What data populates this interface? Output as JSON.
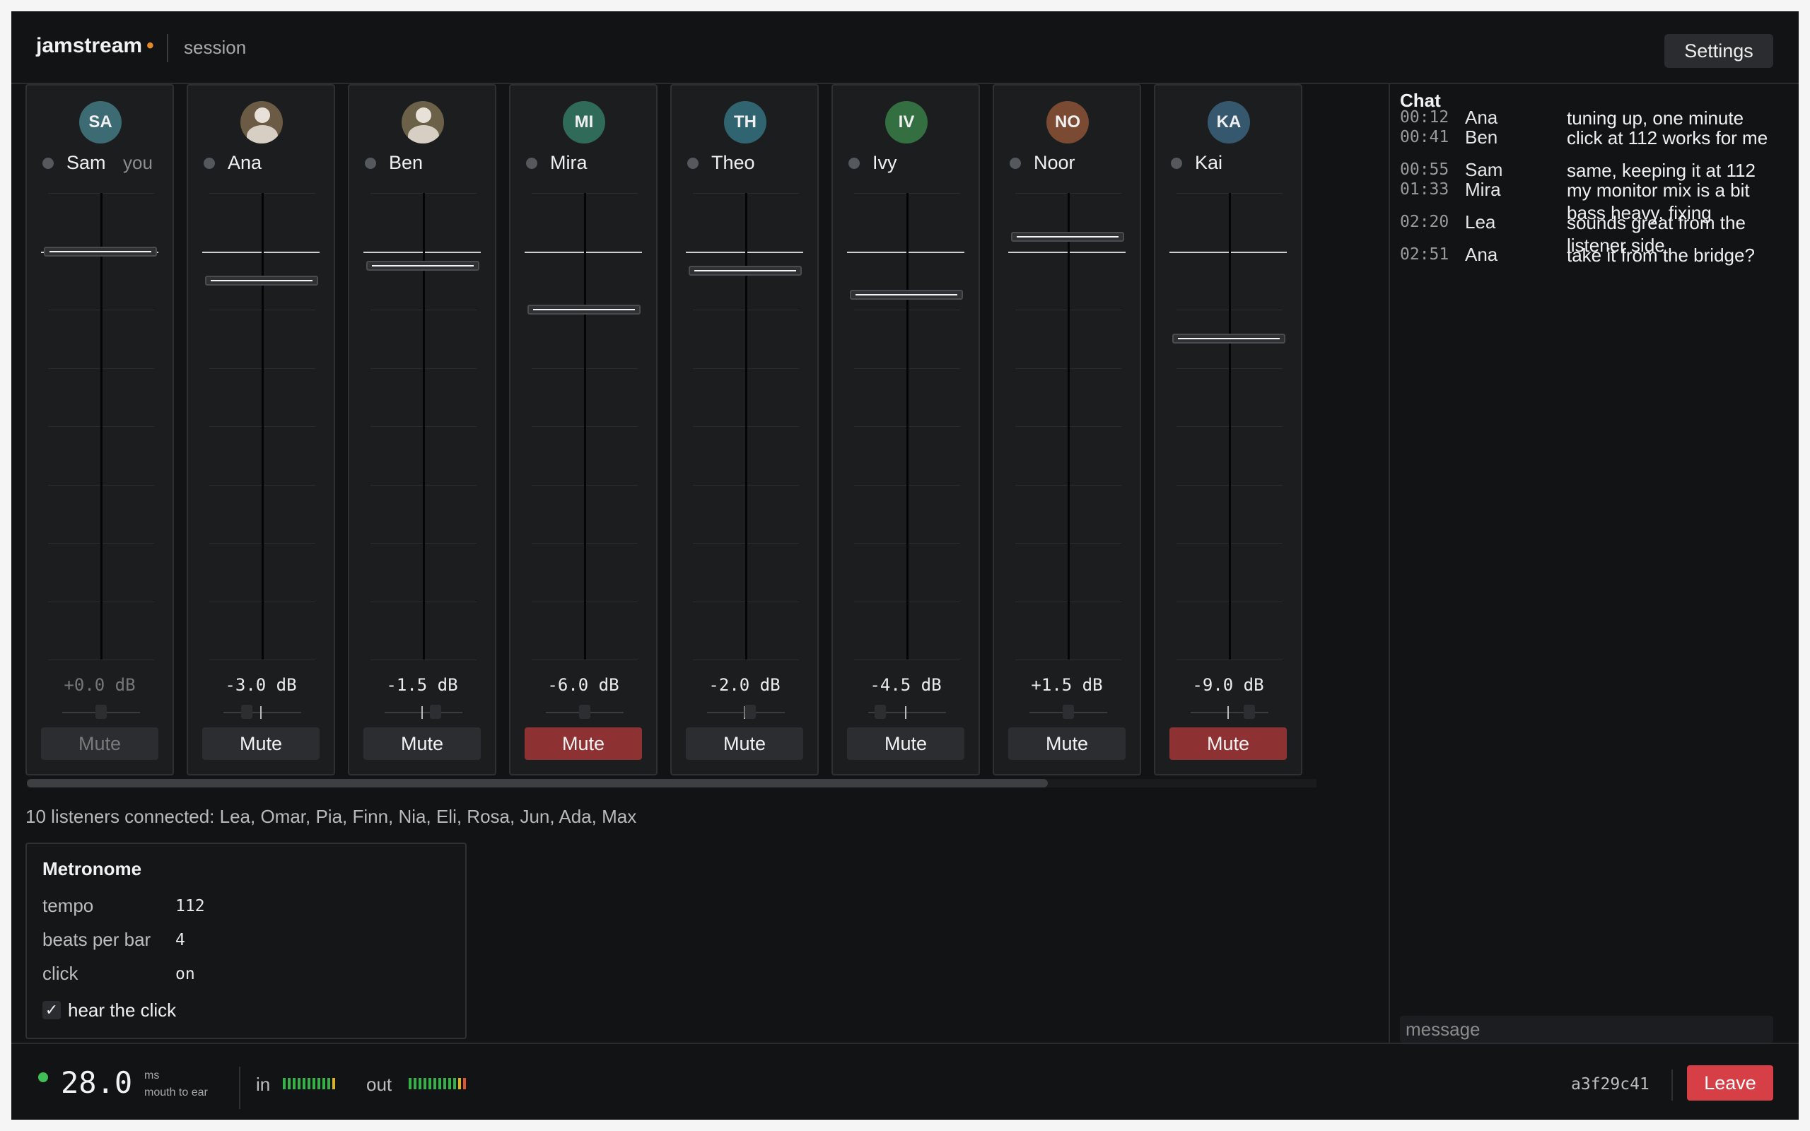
{
  "header": {
    "brand": "jamstream",
    "brand_dot": "•",
    "session": "session",
    "settings_label": "Settings"
  },
  "strips": [
    {
      "initials": "SA",
      "name": "Sam",
      "you": "you",
      "db": "+0.0 dB",
      "mute": "Mute",
      "muted": false,
      "self": true,
      "avatar_color": "#3c6b73",
      "photo": false,
      "gain_db": 0.0,
      "pan": 0.0
    },
    {
      "initials": "",
      "name": "Ana",
      "db": "-3.0 dB",
      "mute": "Mute",
      "muted": false,
      "self": false,
      "avatar_color": "#6b5a44",
      "photo": true,
      "gain_db": -3.0,
      "pan": -0.4
    },
    {
      "initials": "",
      "name": "Ben",
      "db": "-1.5 dB",
      "mute": "Mute",
      "muted": false,
      "self": false,
      "avatar_color": "#6b6148",
      "photo": true,
      "gain_db": -1.5,
      "pan": 0.3
    },
    {
      "initials": "MI",
      "name": "Mira",
      "db": "-6.0 dB",
      "mute": "Mute",
      "muted": true,
      "self": false,
      "avatar_color": "#2f6b58",
      "photo": false,
      "gain_db": -6.0,
      "pan": 0.0
    },
    {
      "initials": "TH",
      "name": "Theo",
      "db": "-2.0 dB",
      "mute": "Mute",
      "muted": false,
      "self": false,
      "avatar_color": "#2f6470",
      "photo": false,
      "gain_db": -2.0,
      "pan": 0.1
    },
    {
      "initials": "IV",
      "name": "Ivy",
      "db": "-4.5 dB",
      "mute": "Mute",
      "muted": false,
      "self": false,
      "avatar_color": "#336f40",
      "photo": false,
      "gain_db": -4.5,
      "pan": -0.7
    },
    {
      "initials": "NO",
      "name": "Noor",
      "db": "+1.5 dB",
      "mute": "Mute",
      "muted": false,
      "self": false,
      "avatar_color": "#7a4a33",
      "photo": false,
      "gain_db": 1.5,
      "pan": 0.0
    },
    {
      "initials": "KA",
      "name": "Kai",
      "db": "-9.0 dB",
      "mute": "Mute",
      "muted": true,
      "self": false,
      "avatar_color": "#35586f",
      "photo": false,
      "gain_db": -9.0,
      "pan": 0.5
    }
  ],
  "listeners": "10 listeners connected: Lea, Omar, Pia, Finn, Nia, Eli, Rosa, Jun, Ada, Max",
  "metronome": {
    "title": "Metronome",
    "tempo_label": "tempo",
    "tempo": "112",
    "beats_label": "beats per bar",
    "beats": "4",
    "click_label": "click",
    "click": "on",
    "hear_label": "hear the click",
    "check_mark": "✓"
  },
  "chat": {
    "title": "Chat",
    "messages": [
      {
        "time": "00:12",
        "author": "Ana",
        "text": "tuning up, one minute"
      },
      {
        "time": "00:41",
        "author": "Ben",
        "text": "click at 112 works for me"
      },
      {
        "time": "00:55",
        "author": "Sam",
        "text": "same, keeping it at 112"
      },
      {
        "time": "01:33",
        "author": "Mira",
        "text": "my monitor mix is a bit bass heavy, fixing"
      },
      {
        "time": "02:20",
        "author": "Lea",
        "text": "sounds great from the listener side"
      },
      {
        "time": "02:51",
        "author": "Ana",
        "text": "take it from the bridge?"
      }
    ],
    "placeholder": "message"
  },
  "footer": {
    "latency": "28.0",
    "latency_unit": "ms",
    "latency_label": "mouth to ear",
    "in_label": "in",
    "out_label": "out",
    "session_id": "a3f29c41",
    "leave_label": "Leave",
    "in_level": 0.55,
    "out_level": 0.6
  },
  "colors": {
    "accent": "#e08a2a",
    "mute_active": "#8e3133",
    "leave": "#d63f45",
    "meter_green": "#38b04a",
    "meter_yellow": "#d9b230",
    "meter_red": "#e0562e",
    "latency_ok": "#3fbf55"
  }
}
